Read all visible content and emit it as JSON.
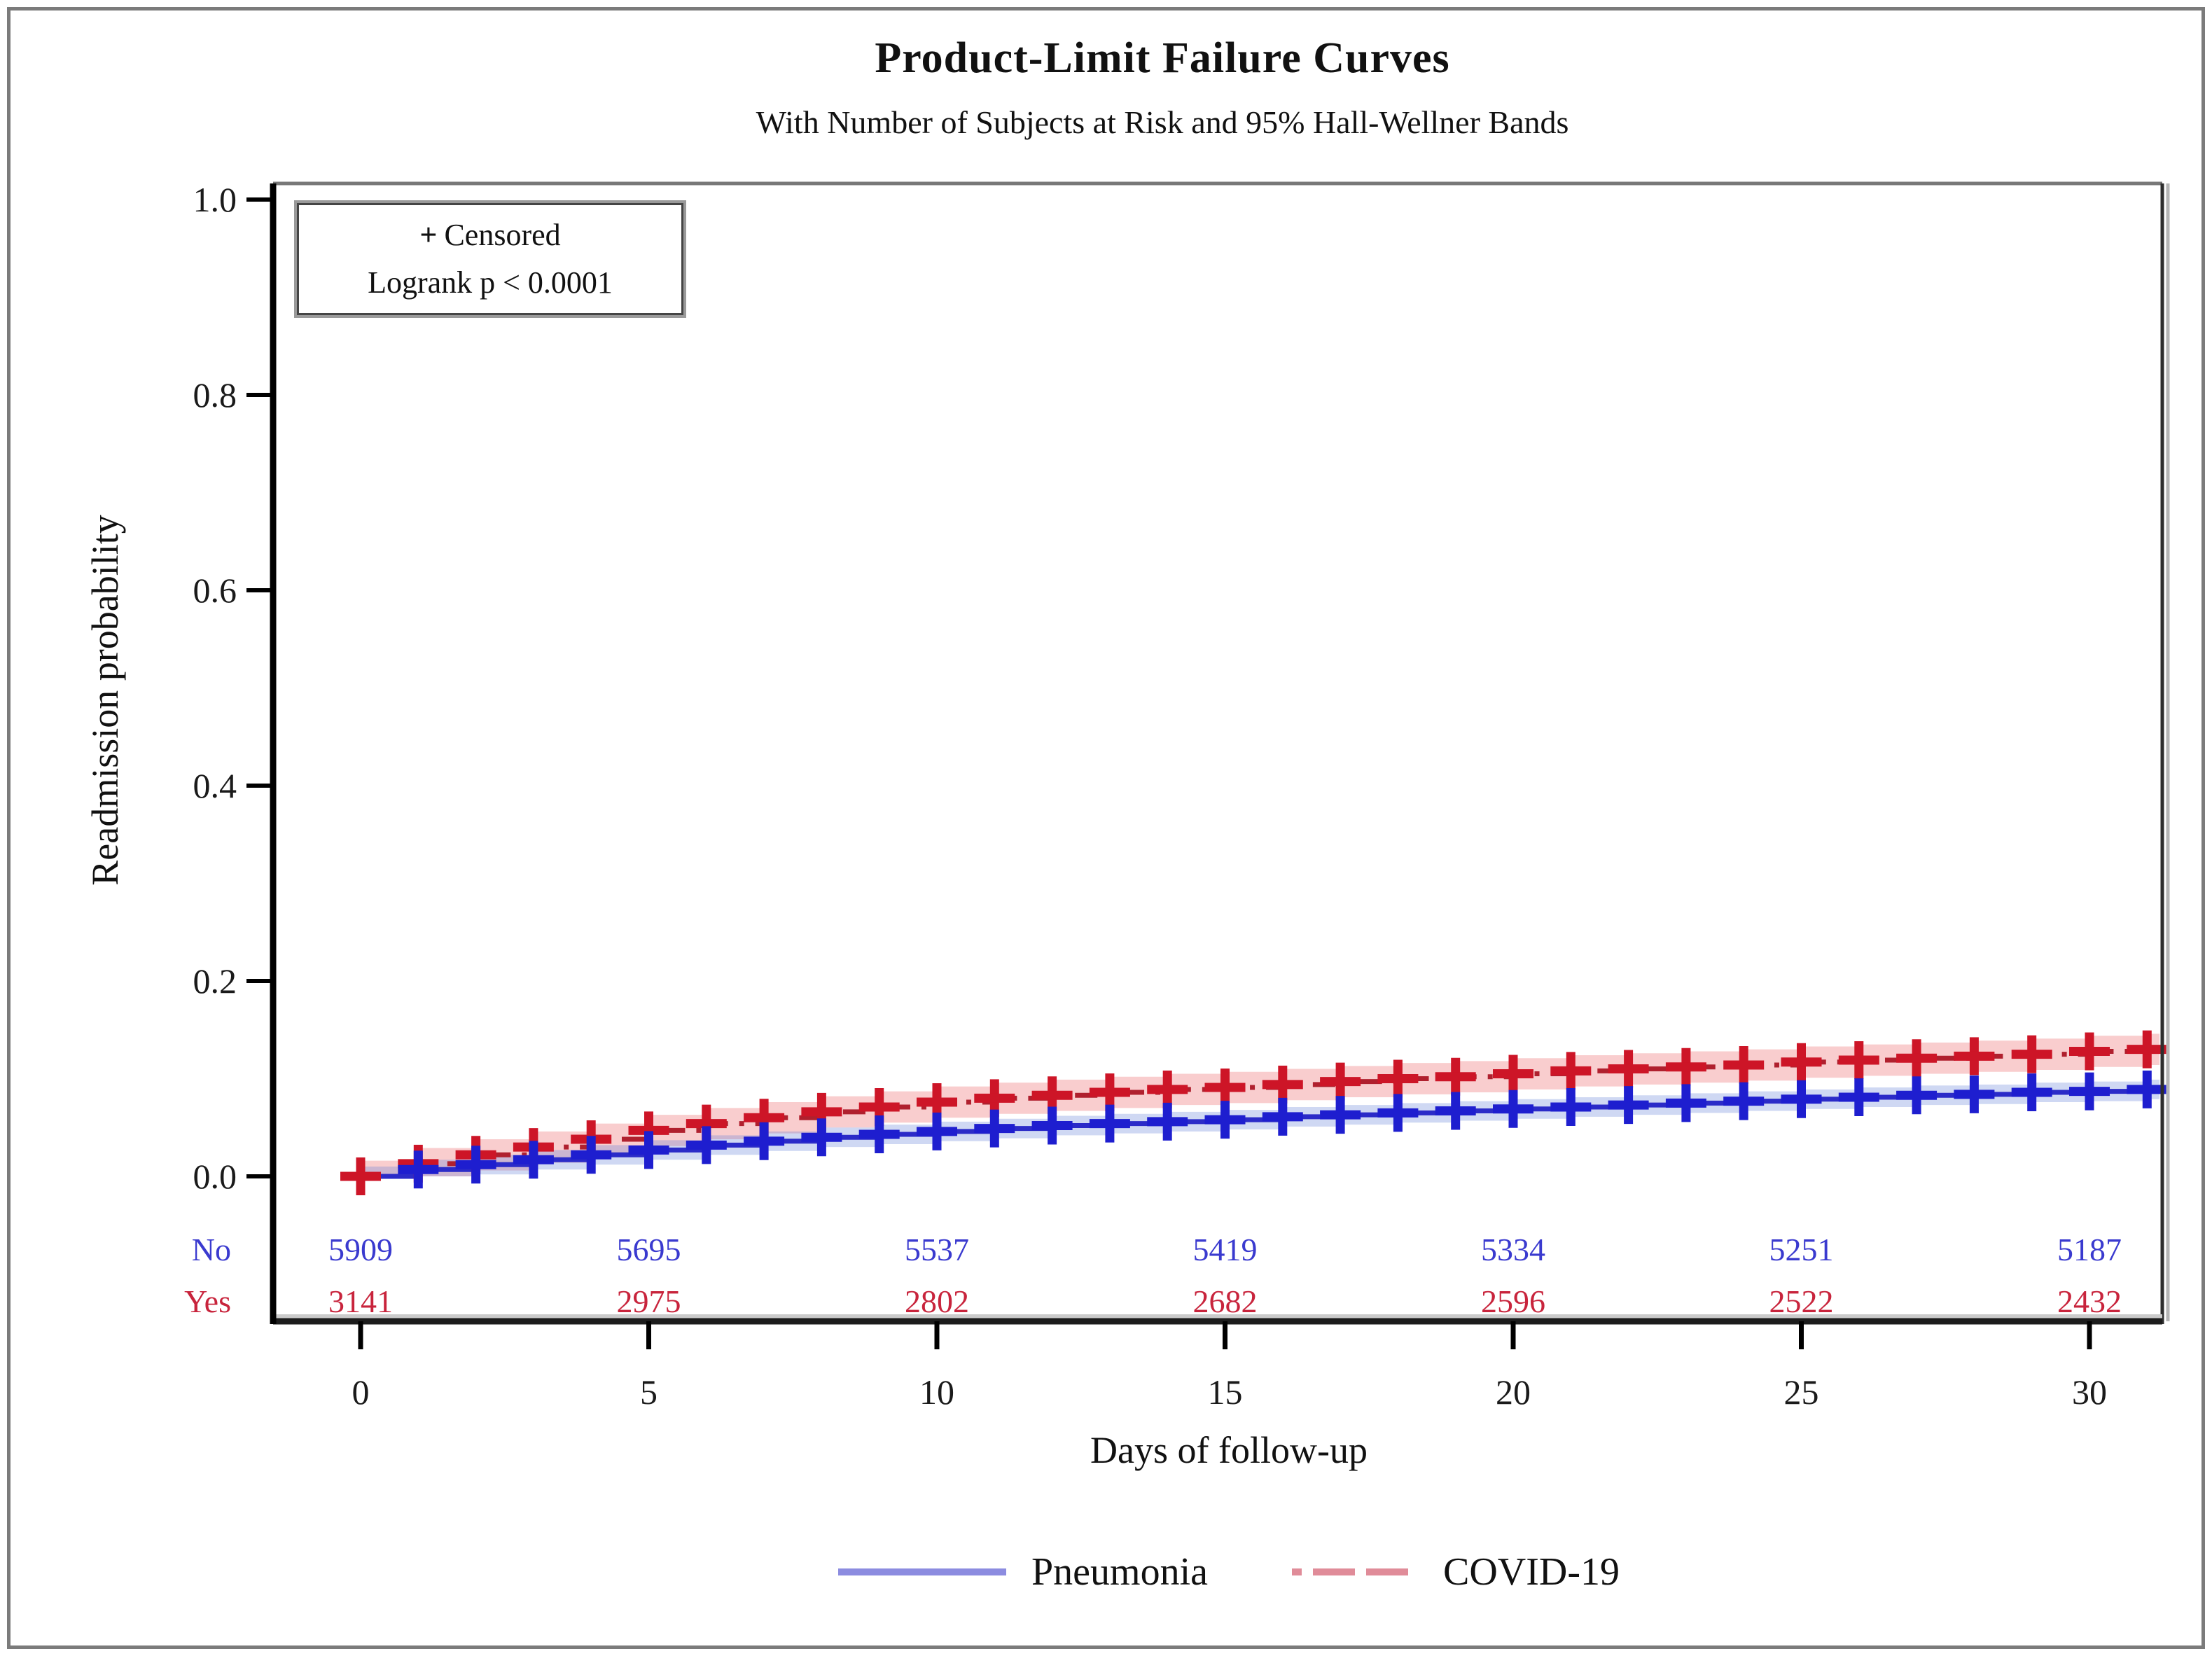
{
  "figure": {
    "title": "Product-Limit Failure Curves",
    "subtitle": "With Number of Subjects at Risk and 95% Hall-Wellner Bands"
  },
  "inset": {
    "censored_marker": "+",
    "censored_label": "Censored",
    "logrank_label": "Logrank p < 0.0001"
  },
  "chart_data": {
    "type": "line",
    "subtype": "kaplan-meier-failure-step-curves",
    "title": "Product-Limit Failure Curves",
    "subtitle": "With Number of Subjects at Risk and 95% Hall-Wellner Bands",
    "xlabel": "Days of follow-up",
    "ylabel": "Readmission probability",
    "xlim": [
      -1.5,
      31.3
    ],
    "ylim": [
      0,
      1.0
    ],
    "grid": false,
    "legend_position": "bottom",
    "xticks": [
      0,
      5,
      10,
      15,
      20,
      25,
      30
    ],
    "xtick_labels": [
      "0",
      "5",
      "10",
      "15",
      "20",
      "25",
      "30"
    ],
    "ytick_values": [
      1.0,
      0.8,
      0.6,
      0.4,
      0.2,
      0.0
    ],
    "ytick_labels": [
      "1.0",
      "0.8",
      "0.6",
      "0.4",
      "0.2",
      "0.0"
    ],
    "annotations": [
      "+ Censored",
      "Logrank p < 0.0001"
    ],
    "days": [
      0,
      1,
      2,
      3,
      4,
      5,
      6,
      7,
      8,
      9,
      10,
      11,
      12,
      13,
      14,
      15,
      16,
      17,
      18,
      19,
      20,
      21,
      22,
      23,
      24,
      25,
      26,
      27,
      28,
      29,
      30,
      31
    ],
    "series": [
      {
        "name": "Pneumonia",
        "line_style": "solid",
        "line_color": "#2B2BC8",
        "marker_color": "#1E1ECF",
        "band_color": "rgba(95,125,215,0.30)",
        "legend_swatch_color": "#8C8CE0",
        "band_halfwidth": 0.01,
        "censor_mark_days_start": 1,
        "values": [
          0.0,
          0.007,
          0.012,
          0.017,
          0.022,
          0.027,
          0.032,
          0.036,
          0.04,
          0.043,
          0.046,
          0.049,
          0.052,
          0.054,
          0.056,
          0.058,
          0.061,
          0.063,
          0.065,
          0.067,
          0.069,
          0.071,
          0.073,
          0.075,
          0.077,
          0.079,
          0.081,
          0.083,
          0.084,
          0.086,
          0.087,
          0.089
        ]
      },
      {
        "name": "COVID-19",
        "line_style": "dash-dot",
        "line_color": "#B0202E",
        "marker_color": "#CD1527",
        "band_color": "rgba(236,100,104,0.32)",
        "legend_swatch_color": "#E08C99",
        "band_halfwidth": 0.016,
        "censor_mark_days_start": 0,
        "values": [
          0.0,
          0.013,
          0.022,
          0.03,
          0.038,
          0.047,
          0.054,
          0.06,
          0.066,
          0.071,
          0.076,
          0.08,
          0.083,
          0.086,
          0.089,
          0.091,
          0.094,
          0.097,
          0.1,
          0.102,
          0.105,
          0.108,
          0.11,
          0.112,
          0.114,
          0.117,
          0.119,
          0.121,
          0.123,
          0.125,
          0.128,
          0.13
        ]
      }
    ],
    "at_risk": {
      "times": [
        0,
        5,
        10,
        15,
        20,
        25,
        30
      ],
      "rows": [
        {
          "label": "No",
          "text_color": "#3A3ACF",
          "counts": [
            5909,
            5695,
            5537,
            5419,
            5334,
            5251,
            5187
          ]
        },
        {
          "label": "Yes",
          "text_color": "#C8243C",
          "counts": [
            3141,
            2975,
            2802,
            2682,
            2596,
            2522,
            2432
          ]
        }
      ]
    },
    "axis_color": "#1a1a1a"
  }
}
